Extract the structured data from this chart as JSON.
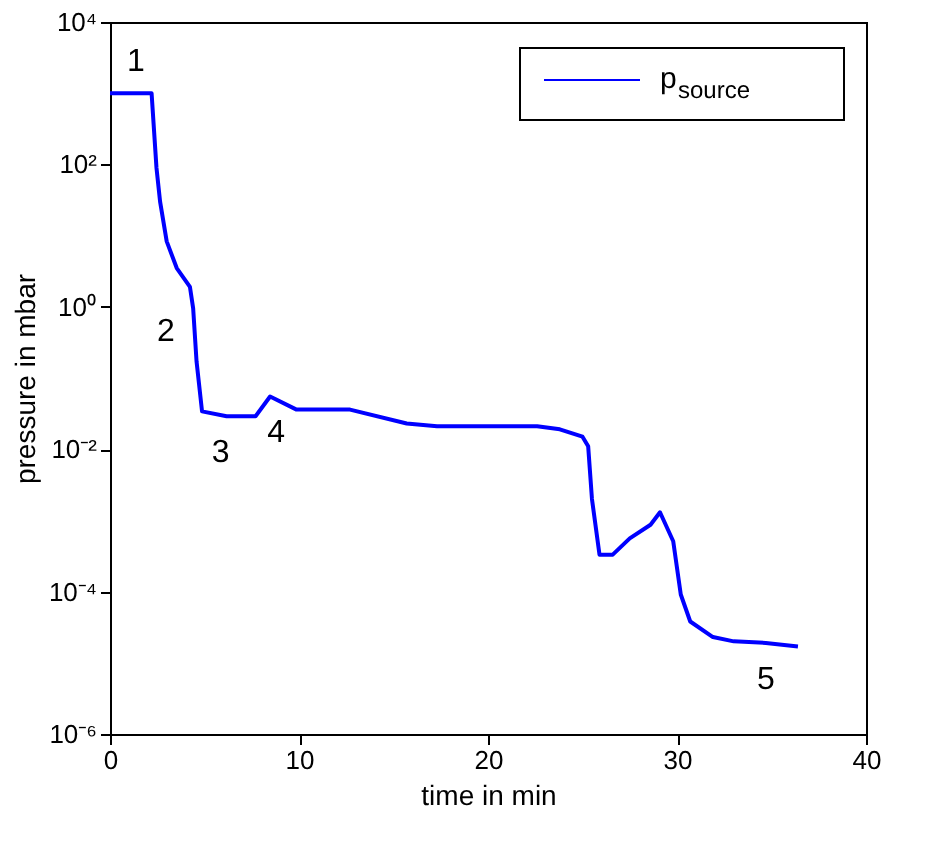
{
  "chart_data": {
    "type": "line",
    "xlabel": "time in min",
    "ylabel": "pressure in mbar",
    "log": "y",
    "grid": false,
    "legend": "top right",
    "marker": "none",
    "line_style": "solid",
    "xlim": [
      0,
      40
    ],
    "xticks": [
      0,
      10,
      20,
      30,
      40
    ],
    "ylim": [
      1e-06,
      10000
    ],
    "yticks": [
      {
        "value": 1e-06,
        "label": "10⁻⁶"
      },
      {
        "value": 0.0001,
        "label": "10⁻⁴"
      },
      {
        "value": 0.01,
        "label": "10⁻²"
      },
      {
        "value": 1,
        "label": "10⁰"
      },
      {
        "value": 100,
        "label": "10²"
      },
      {
        "value": 10000,
        "label": "10⁴"
      }
    ],
    "series": [
      {
        "name": "p$_{source}$",
        "color": "#0000ff",
        "x": [
          0,
          2.2,
          2.46,
          2.65,
          3.0,
          3.53,
          4.23,
          4.4,
          4.58,
          4.87,
          6.17,
          7.7,
          8.47,
          9.87,
          12.7,
          15.7,
          17.3,
          18.5,
          22.6,
          23.8,
          25.0,
          25.3,
          25.5,
          25.9,
          26.6,
          27.5,
          28.6,
          29.1,
          29.8,
          30.2,
          30.7,
          31.9,
          33.0,
          34.7,
          36.4
        ],
        "values": [
          1000,
          1000,
          89,
          30,
          8.3,
          3.5,
          1.9,
          0.95,
          0.17,
          0.034,
          0.029,
          0.029,
          0.055,
          0.036,
          0.036,
          0.023,
          0.021,
          0.021,
          0.021,
          0.019,
          0.015,
          0.011,
          0.002,
          0.00033,
          0.00033,
          0.00056,
          0.00087,
          0.0013,
          0.00051,
          9.1e-05,
          3.8e-05,
          2.3e-05,
          2e-05,
          1.9e-05,
          1.7e-05
        ]
      }
    ],
    "annotations": [
      {
        "text": "1",
        "x": 0,
        "y": 1000
      },
      {
        "text": "2",
        "x": 4.23,
        "y": 1.9
      },
      {
        "text": "3",
        "x": 6.17,
        "y": 0.029
      },
      {
        "text": "4",
        "x": 8.47,
        "y": 0.055
      },
      {
        "text": "5",
        "x": 34.7,
        "y": 1.9e-05
      }
    ]
  }
}
